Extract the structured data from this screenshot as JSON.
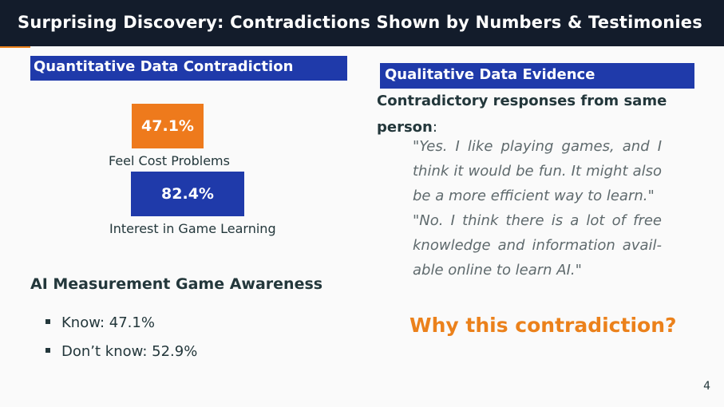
{
  "header": {
    "title": "Surprising Discovery: Contradictions Shown by Numbers & Testimonies"
  },
  "left": {
    "block_title": "Quantitative Data Contradiction",
    "bars": [
      {
        "value": "47.1%",
        "label": "Feel Cost Problems"
      },
      {
        "value": "82.4%",
        "label": "Interest in Game Learning"
      }
    ],
    "awareness": {
      "heading": "AI Measurement Game Awareness",
      "items": [
        "Know: 47.1%",
        "Don’t know: 52.9%"
      ]
    }
  },
  "right": {
    "block_title": "Qualitative Data Evidence",
    "intro_bold": "Contradictory responses from same person",
    "intro_rest": ":",
    "quotes": [
      "\"Yes.  I like playing games, and I think it would be fun.  It might also be a more efficient way to learn.\"",
      "\"No.  I think there is a lot of free knowledge and information avail-able online to learn AI.\""
    ],
    "question": "Why this contradiction?"
  },
  "footer": {
    "page_number": "4"
  },
  "colors": {
    "header_bg": "#131c2b",
    "accent_orange": "#eb811b",
    "block_blue": "#1f3aaa"
  }
}
